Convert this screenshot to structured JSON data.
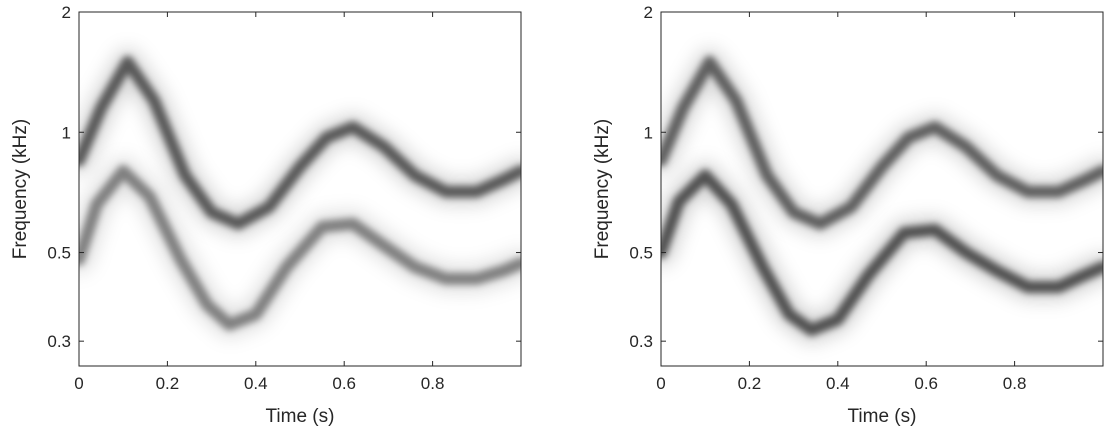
{
  "chart_data": [
    {
      "type": "heatmap",
      "title": "",
      "xlabel": "Time (s)",
      "ylabel": "Frequency (kHz)",
      "xlim": [
        0,
        1
      ],
      "ylim": [
        0.26,
        2.0
      ],
      "y_scale": "log",
      "colormap": "gray-inverted",
      "grid": false,
      "x_ticks": [
        {
          "value": 0,
          "label": "0"
        },
        {
          "value": 0.2,
          "label": "0.2"
        },
        {
          "value": 0.4,
          "label": "0.4"
        },
        {
          "value": 0.6,
          "label": "0.6"
        },
        {
          "value": 0.8,
          "label": "0.8"
        }
      ],
      "y_ticks": [
        {
          "value": 2,
          "label": "2"
        },
        {
          "value": 1,
          "label": "1"
        },
        {
          "value": 0.5,
          "label": "0.5"
        },
        {
          "value": 0.3,
          "label": "0.3"
        }
      ],
      "ridges": [
        {
          "intensity": 0.95,
          "points": [
            [
              0.0,
              0.85
            ],
            [
              0.05,
              1.15
            ],
            [
              0.11,
              1.5
            ],
            [
              0.17,
              1.2
            ],
            [
              0.24,
              0.78
            ],
            [
              0.3,
              0.63
            ],
            [
              0.36,
              0.59
            ],
            [
              0.43,
              0.65
            ],
            [
              0.5,
              0.82
            ],
            [
              0.56,
              0.97
            ],
            [
              0.62,
              1.03
            ],
            [
              0.69,
              0.92
            ],
            [
              0.76,
              0.78
            ],
            [
              0.83,
              0.71
            ],
            [
              0.9,
              0.71
            ],
            [
              0.96,
              0.76
            ],
            [
              1.0,
              0.8
            ]
          ]
        },
        {
          "intensity": 0.7,
          "points": [
            [
              0.0,
              0.48
            ],
            [
              0.04,
              0.66
            ],
            [
              0.1,
              0.8
            ],
            [
              0.16,
              0.69
            ],
            [
              0.23,
              0.48
            ],
            [
              0.29,
              0.37
            ],
            [
              0.34,
              0.33
            ],
            [
              0.4,
              0.35
            ],
            [
              0.47,
              0.46
            ],
            [
              0.55,
              0.58
            ],
            [
              0.62,
              0.59
            ],
            [
              0.69,
              0.52
            ],
            [
              0.76,
              0.46
            ],
            [
              0.83,
              0.43
            ],
            [
              0.9,
              0.43
            ],
            [
              0.96,
              0.45
            ],
            [
              1.0,
              0.47
            ]
          ]
        }
      ]
    },
    {
      "type": "heatmap",
      "title": "",
      "xlabel": "Time (s)",
      "ylabel": "Frequency (kHz)",
      "xlim": [
        0,
        1
      ],
      "ylim": [
        0.26,
        2.0
      ],
      "y_scale": "log",
      "colormap": "gray-inverted",
      "grid": false,
      "x_ticks": [
        {
          "value": 0,
          "label": "0"
        },
        {
          "value": 0.2,
          "label": "0.2"
        },
        {
          "value": 0.4,
          "label": "0.4"
        },
        {
          "value": 0.6,
          "label": "0.6"
        },
        {
          "value": 0.8,
          "label": "0.8"
        }
      ],
      "y_ticks": [
        {
          "value": 2,
          "label": "2"
        },
        {
          "value": 1,
          "label": "1"
        },
        {
          "value": 0.5,
          "label": "0.5"
        },
        {
          "value": 0.3,
          "label": "0.3"
        }
      ],
      "ridges": [
        {
          "intensity": 0.9,
          "points": [
            [
              0.0,
              0.85
            ],
            [
              0.05,
              1.15
            ],
            [
              0.11,
              1.5
            ],
            [
              0.17,
              1.2
            ],
            [
              0.24,
              0.78
            ],
            [
              0.3,
              0.63
            ],
            [
              0.36,
              0.59
            ],
            [
              0.43,
              0.65
            ],
            [
              0.5,
              0.82
            ],
            [
              0.56,
              0.97
            ],
            [
              0.62,
              1.03
            ],
            [
              0.69,
              0.92
            ],
            [
              0.76,
              0.78
            ],
            [
              0.83,
              0.71
            ],
            [
              0.9,
              0.71
            ],
            [
              0.96,
              0.76
            ],
            [
              1.0,
              0.8
            ]
          ]
        },
        {
          "intensity": 1.0,
          "points": [
            [
              0.0,
              0.5
            ],
            [
              0.04,
              0.67
            ],
            [
              0.1,
              0.78
            ],
            [
              0.16,
              0.66
            ],
            [
              0.23,
              0.46
            ],
            [
              0.29,
              0.35
            ],
            [
              0.34,
              0.32
            ],
            [
              0.4,
              0.34
            ],
            [
              0.47,
              0.44
            ],
            [
              0.55,
              0.56
            ],
            [
              0.62,
              0.57
            ],
            [
              0.69,
              0.5
            ],
            [
              0.76,
              0.45
            ],
            [
              0.83,
              0.41
            ],
            [
              0.9,
              0.41
            ],
            [
              0.96,
              0.44
            ],
            [
              1.0,
              0.46
            ]
          ]
        }
      ]
    }
  ]
}
